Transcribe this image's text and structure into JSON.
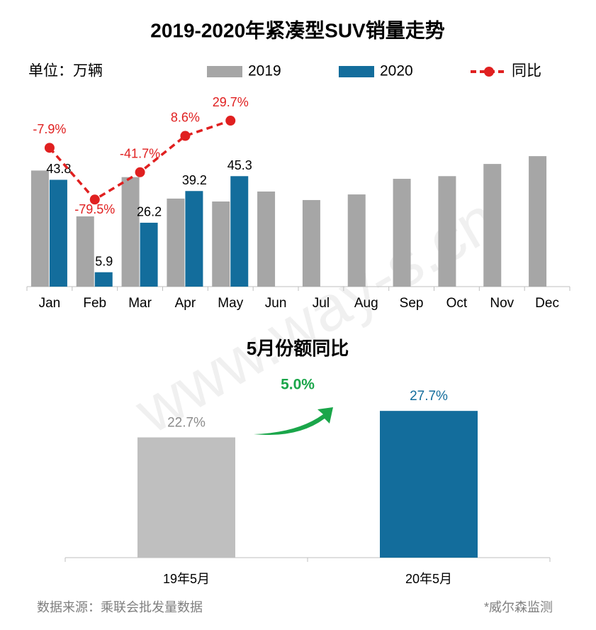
{
  "chart_data": [
    {
      "type": "bar",
      "title": "2019-2020年紧凑型SUV销量走势",
      "unit_label": "单位：万辆",
      "categories": [
        "Jan",
        "Feb",
        "Mar",
        "Apr",
        "May",
        "Jun",
        "Jul",
        "Aug",
        "Sep",
        "Oct",
        "Nov",
        "Dec"
      ],
      "ylim": [
        0,
        80
      ],
      "y2lim": [
        -200,
        70
      ],
      "series": [
        {
          "name": "2019",
          "type": "bar",
          "color": "#a6a6a6",
          "values": [
            47.6,
            28.8,
            44.9,
            36.1,
            34.9,
            39.0,
            35.5,
            37.8,
            44.2,
            45.3,
            50.3,
            53.5
          ]
        },
        {
          "name": "2020",
          "type": "bar",
          "color": "#136d9c",
          "values": [
            43.8,
            5.9,
            26.2,
            39.2,
            45.3,
            null,
            null,
            null,
            null,
            null,
            null,
            null
          ]
        },
        {
          "name": "同比",
          "type": "line",
          "axis": "y2",
          "color": "#e02020",
          "dashed": true,
          "values": [
            -7.9,
            -79.5,
            -41.7,
            8.6,
            29.7,
            null,
            null,
            null,
            null,
            null,
            null,
            null
          ],
          "value_labels": [
            "-7.9%",
            "-79.5%",
            "-41.7%",
            "8.6%",
            "29.7%",
            null,
            null,
            null,
            null,
            null,
            null,
            null
          ]
        }
      ]
    },
    {
      "type": "bar",
      "title": "5月份额同比",
      "categories": [
        "19年5月",
        "20年5月"
      ],
      "values": [
        22.7,
        27.7
      ],
      "value_labels": [
        "22.7%",
        "27.7%"
      ],
      "colors": [
        "#bfbfbf",
        "#136d9c"
      ],
      "label_colors": [
        "#8c8c8c",
        "#136d9c"
      ],
      "ylim": [
        0,
        30
      ],
      "annotation": "5.0%"
    }
  ],
  "footer": {
    "source": "数据来源：乘联会批发量数据",
    "note": "*威尔森监测"
  },
  "watermark": "www.way-s.cn"
}
